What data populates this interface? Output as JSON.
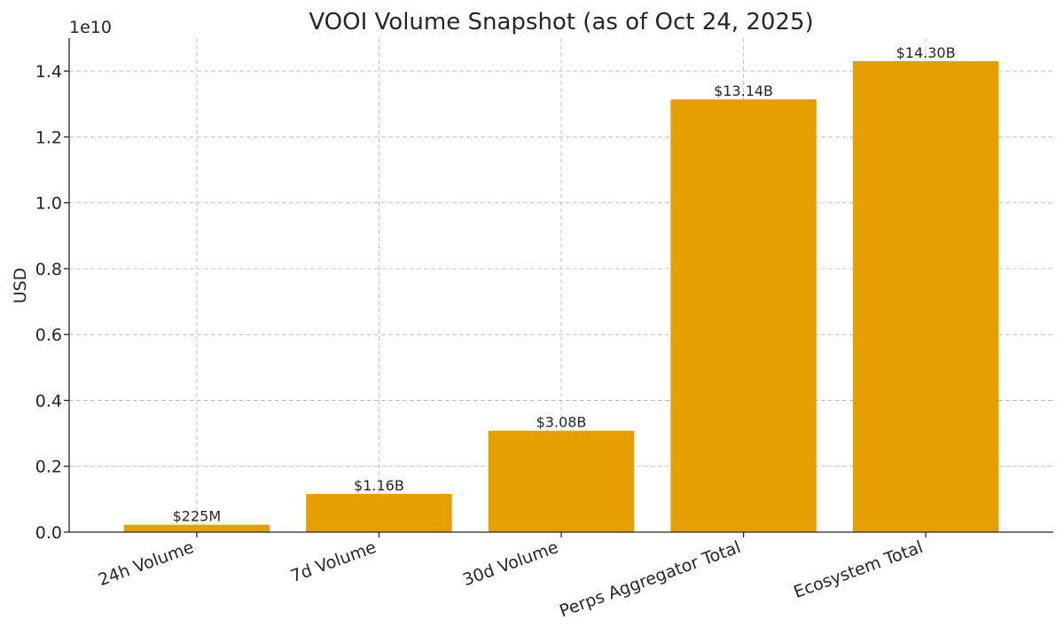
{
  "chart_data": {
    "type": "bar",
    "title": "VOOI Volume Snapshot (as of Oct 24, 2025)",
    "xlabel": "",
    "ylabel": "USD",
    "offset_label": "1e10",
    "categories": [
      "24h Volume",
      "7d Volume",
      "30d Volume",
      "Perps Aggregator Total",
      "Ecosystem Total"
    ],
    "values": [
      225000000,
      1160000000,
      3080000000,
      13140000000,
      14300000000
    ],
    "data_labels": [
      "$225M",
      "$1.16B",
      "$3.08B",
      "$13.14B",
      "$14.30B"
    ],
    "yticks": [
      0,
      2000000000,
      4000000000,
      6000000000,
      8000000000,
      10000000000,
      12000000000,
      14000000000
    ],
    "ytick_labels": [
      "0.0",
      "0.2",
      "0.4",
      "0.6",
      "0.8",
      "1.0",
      "1.2",
      "1.4"
    ],
    "ylim": [
      0,
      15000000000
    ],
    "grid": true,
    "bar_color": "#e59f00"
  }
}
